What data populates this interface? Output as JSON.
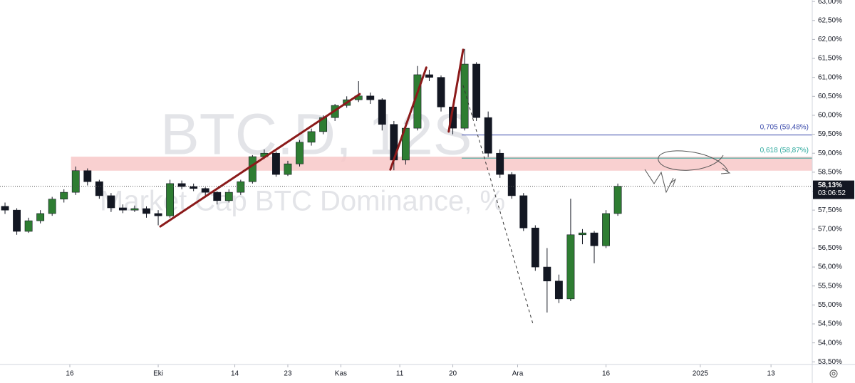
{
  "chart_data": {
    "type": "candlestick",
    "watermark": "BTC.D, 12S",
    "watermark_subtitle": "Market Cap BTC Dominance, %",
    "x": [
      4,
      6,
      8,
      10,
      12,
      14,
      16,
      18,
      20,
      22,
      24,
      26,
      28,
      30,
      32,
      34,
      36,
      38,
      40,
      42,
      44,
      46,
      48,
      50,
      52,
      54,
      56,
      58,
      60,
      62,
      64,
      66,
      68,
      70,
      72,
      74,
      76,
      78,
      80,
      82,
      84,
      86,
      88,
      90,
      92,
      94,
      96,
      98,
      100,
      102,
      104,
      106,
      108
    ],
    "candles": [
      [
        57.6,
        57.7,
        57.4,
        57.5
      ],
      [
        57.5,
        57.55,
        56.85,
        56.94
      ],
      [
        56.94,
        57.3,
        56.9,
        57.22
      ],
      [
        57.22,
        57.5,
        57.15,
        57.41
      ],
      [
        57.41,
        57.85,
        57.35,
        57.79
      ],
      [
        57.79,
        58.05,
        57.7,
        57.97
      ],
      [
        57.97,
        58.65,
        57.9,
        58.54
      ],
      [
        58.54,
        58.6,
        58.15,
        58.25
      ],
      [
        58.25,
        58.3,
        57.8,
        57.88
      ],
      [
        57.88,
        57.95,
        57.45,
        57.56
      ],
      [
        57.56,
        57.65,
        57.42,
        57.5
      ],
      [
        57.5,
        57.62,
        57.45,
        57.54
      ],
      [
        57.54,
        57.6,
        57.3,
        57.41
      ],
      [
        57.41,
        57.5,
        57.1,
        57.35
      ],
      [
        57.35,
        58.3,
        57.3,
        58.2
      ],
      [
        58.2,
        58.28,
        58.05,
        58.12
      ],
      [
        58.12,
        58.2,
        58.0,
        58.07
      ],
      [
        58.07,
        58.1,
        57.85,
        57.97
      ],
      [
        57.97,
        58.0,
        57.65,
        57.75
      ],
      [
        57.75,
        58.05,
        57.7,
        57.97
      ],
      [
        57.97,
        58.3,
        57.9,
        58.25
      ],
      [
        58.25,
        58.95,
        58.2,
        58.91
      ],
      [
        58.91,
        59.1,
        58.85,
        59.0
      ],
      [
        59.0,
        59.05,
        58.38,
        58.44
      ],
      [
        58.44,
        58.8,
        58.4,
        58.72
      ],
      [
        58.72,
        59.35,
        58.65,
        59.29
      ],
      [
        59.29,
        59.65,
        59.2,
        59.57
      ],
      [
        59.57,
        60.0,
        59.5,
        59.94
      ],
      [
        59.94,
        60.3,
        59.85,
        60.26
      ],
      [
        60.26,
        60.5,
        60.2,
        60.41
      ],
      [
        60.41,
        60.9,
        60.35,
        60.51
      ],
      [
        60.51,
        60.6,
        60.3,
        60.41
      ],
      [
        60.41,
        60.45,
        59.6,
        59.76
      ],
      [
        59.76,
        59.85,
        58.55,
        58.82
      ],
      [
        58.82,
        59.8,
        58.7,
        59.66
      ],
      [
        59.66,
        61.3,
        59.6,
        61.07
      ],
      [
        61.07,
        61.2,
        60.9,
        61.0
      ],
      [
        61.0,
        61.05,
        60.1,
        60.22
      ],
      [
        60.22,
        60.3,
        59.5,
        59.66
      ],
      [
        59.66,
        61.75,
        59.6,
        61.35
      ],
      [
        61.35,
        61.4,
        59.85,
        59.94
      ],
      [
        59.94,
        60.1,
        58.9,
        59.0
      ],
      [
        59.0,
        59.1,
        58.35,
        58.44
      ],
      [
        58.44,
        58.5,
        57.8,
        57.88
      ],
      [
        57.88,
        57.95,
        56.95,
        57.03
      ],
      [
        57.03,
        57.1,
        55.9,
        56.0
      ],
      [
        56.0,
        56.5,
        54.8,
        55.63
      ],
      [
        55.63,
        55.8,
        55.05,
        55.16
      ],
      [
        55.16,
        57.8,
        55.1,
        56.85
      ],
      [
        56.85,
        57.0,
        56.6,
        56.9
      ],
      [
        56.9,
        56.95,
        56.1,
        56.56
      ],
      [
        56.56,
        57.5,
        56.5,
        57.41
      ],
      [
        57.41,
        58.2,
        57.35,
        58.13
      ]
    ],
    "up_color": "#2e7d32",
    "down_color": "#131722",
    "xlim": [
      3.15,
      141
    ],
    "ylim": [
      53.43,
      63.04
    ],
    "xticks": [
      {
        "value": 15,
        "label": "16"
      },
      {
        "value": 30,
        "label": "Eki"
      },
      {
        "value": 43,
        "label": "14"
      },
      {
        "value": 52,
        "label": "23"
      },
      {
        "value": 61,
        "label": "Kas"
      },
      {
        "value": 71,
        "label": "11"
      },
      {
        "value": 80,
        "label": "20"
      },
      {
        "value": 91,
        "label": "Ara"
      },
      {
        "value": 106,
        "label": "16"
      },
      {
        "value": 122,
        "label": "2025"
      },
      {
        "value": 134,
        "label": "13"
      }
    ],
    "yticks": [
      {
        "value": 53.5,
        "label": "53,50%"
      },
      {
        "value": 54,
        "label": "54,00%"
      },
      {
        "value": 54.5,
        "label": "54,50%"
      },
      {
        "value": 55,
        "label": "55,00%"
      },
      {
        "value": 55.5,
        "label": "55,50%"
      },
      {
        "value": 56,
        "label": "56,00%"
      },
      {
        "value": 56.5,
        "label": "56,50%"
      },
      {
        "value": 57,
        "label": "57,00%"
      },
      {
        "value": 57.5,
        "label": "57,50%"
      },
      {
        "value": 58,
        "label": "58,00%"
      },
      {
        "value": 58.5,
        "label": "58,50%"
      },
      {
        "value": 59,
        "label": "59,00%"
      },
      {
        "value": 59.5,
        "label": "59,50%"
      },
      {
        "value": 60,
        "label": "60,00%"
      },
      {
        "value": 60.5,
        "label": "60,50%"
      },
      {
        "value": 61,
        "label": "61,00%"
      },
      {
        "value": 61.5,
        "label": "61,50%"
      },
      {
        "value": 62,
        "label": "62,00%"
      },
      {
        "value": 62.5,
        "label": "62,50%"
      },
      {
        "value": 63,
        "label": "63,00%"
      }
    ],
    "last_price": {
      "value": 58.13,
      "label": "58,13%"
    },
    "countdown": "03:06:52",
    "zone": {
      "from": 58.54,
      "to": 58.91,
      "x_start": 15.2,
      "color": "#f8c8c8"
    },
    "fib_levels": [
      {
        "value": 59.48,
        "label": "0,705 (59,48%)",
        "color": "#3949ab",
        "x": [
          81.5,
          141
        ]
      },
      {
        "value": 58.87,
        "label": "0,618 (58,87%)",
        "color": "#26a69a",
        "x": [
          81.5,
          141
        ]
      }
    ],
    "trendlines": [
      {
        "x": [
          30.36,
          64.2
        ],
        "y": [
          57.07,
          60.56
        ]
      },
      {
        "x": [
          69.4,
          75.5
        ],
        "y": [
          58.57,
          61.26
        ]
      },
      {
        "x": [
          79.3,
          81.75
        ],
        "y": [
          59.57,
          61.73
        ]
      }
    ],
    "trend_color": "#8b1a1a",
    "dashed_line": {
      "x": [
        81.75,
        93.6
      ],
      "y": [
        60.79,
        54.5
      ]
    }
  }
}
